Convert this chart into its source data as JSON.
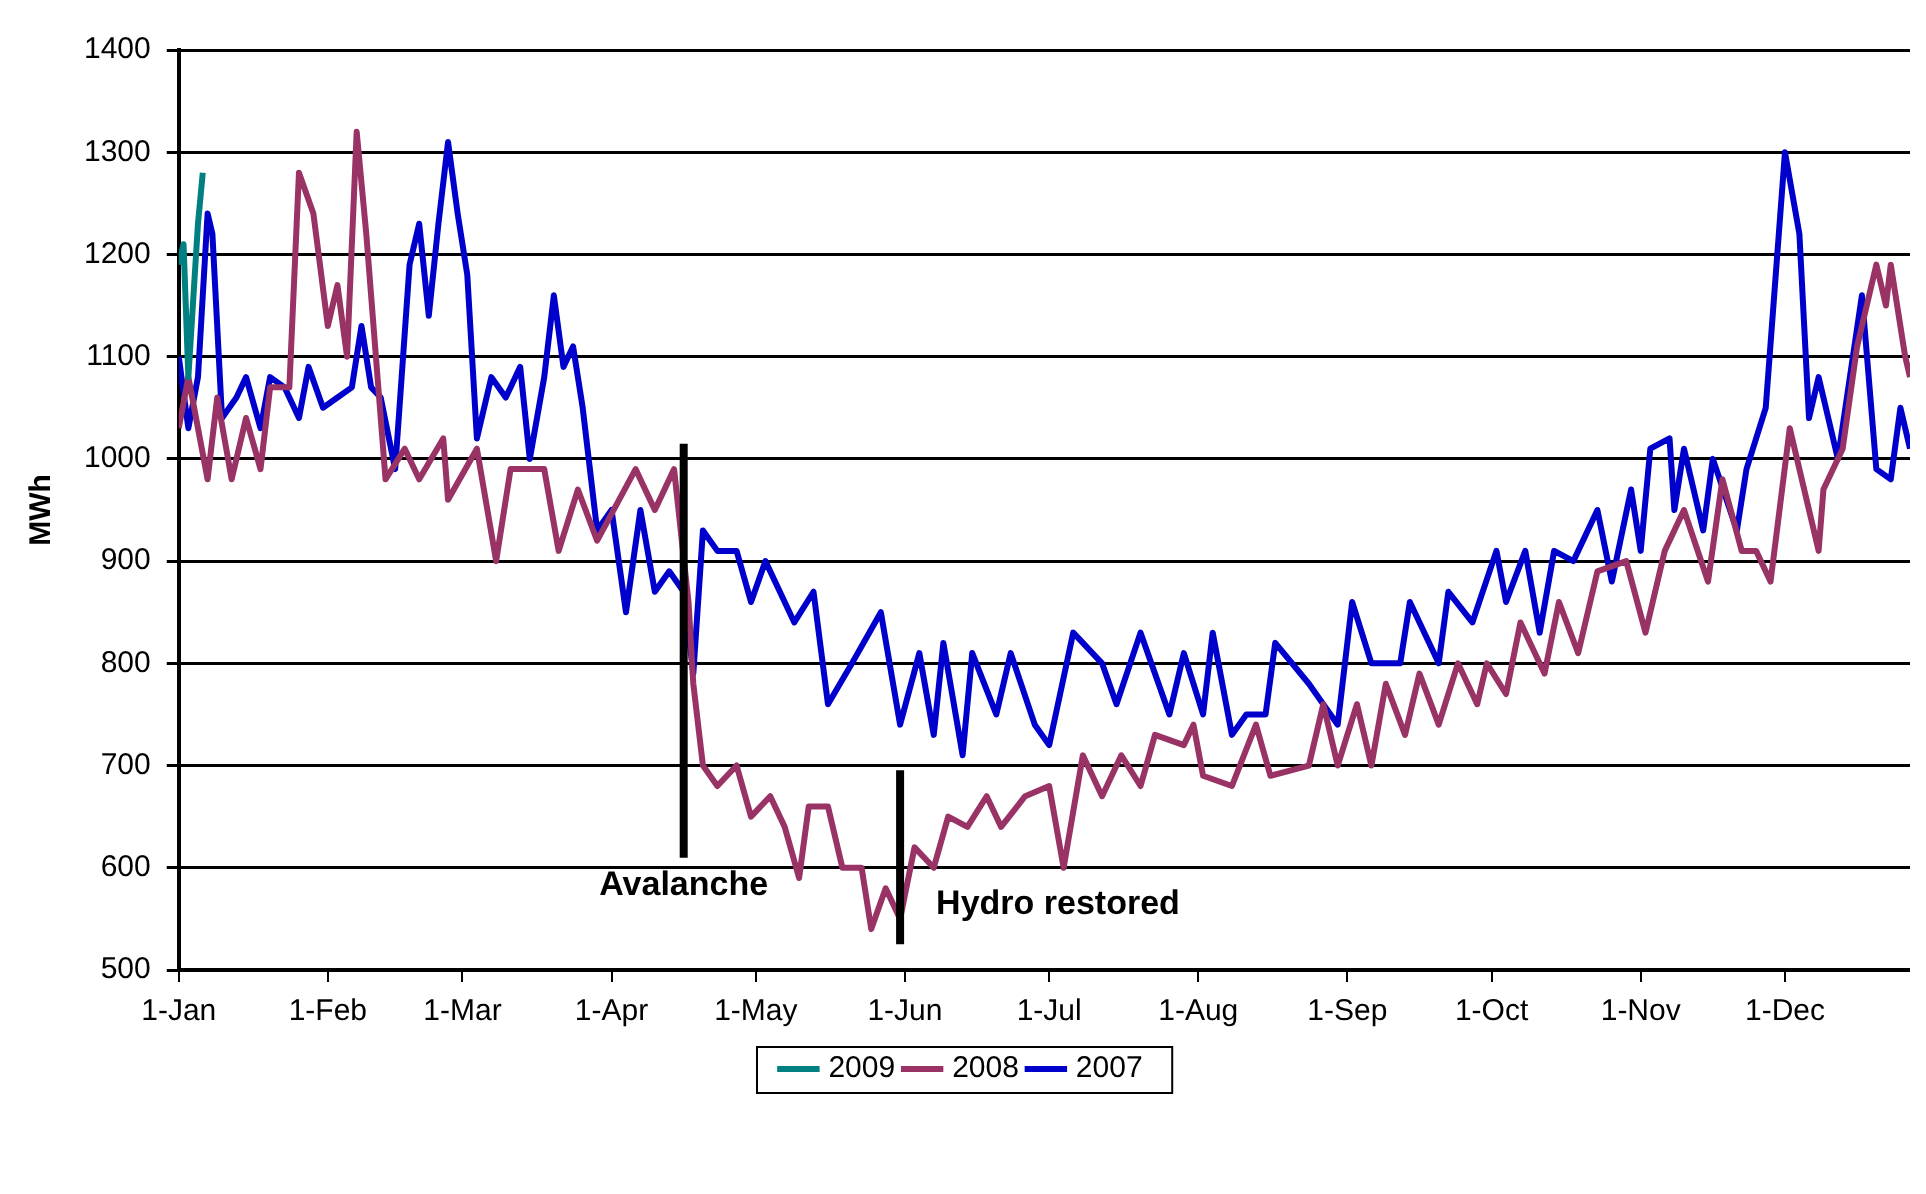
{
  "chart_data": {
    "type": "line",
    "ylabel": "MWh",
    "xlim": [
      "--01-01",
      "--12-27"
    ],
    "xticks": [
      {
        "value": "--01-01",
        "label": "1-Jan"
      },
      {
        "value": "--02-01",
        "label": "1-Feb"
      },
      {
        "value": "--03-01",
        "label": "1-Mar"
      },
      {
        "value": "--04-01",
        "label": "1-Apr"
      },
      {
        "value": "--05-01",
        "label": "1-May"
      },
      {
        "value": "--06-01",
        "label": "1-Jun"
      },
      {
        "value": "--07-01",
        "label": "1-Jul"
      },
      {
        "value": "--08-01",
        "label": "1-Aug"
      },
      {
        "value": "--09-01",
        "label": "1-Sep"
      },
      {
        "value": "--10-01",
        "label": "1-Oct"
      },
      {
        "value": "--11-01",
        "label": "1-Nov"
      },
      {
        "value": "--12-01",
        "label": "1-Dec"
      }
    ],
    "ylim": [
      500,
      1400
    ],
    "yticks": [
      500,
      600,
      700,
      800,
      900,
      1000,
      1100,
      1200,
      1300,
      1400
    ],
    "grid": "y",
    "legend": "bottom",
    "marker": "none",
    "line_style": "solid",
    "ref_lines": [
      {
        "axis": "x",
        "value": "--04-16",
        "label": "Avalanche",
        "color": "#000000"
      },
      {
        "axis": "x",
        "value": "--05-31",
        "label": "Hydro restored",
        "color": "#000000"
      }
    ],
    "series": [
      {
        "name": "2009",
        "color": "#008080",
        "x": [
          "--01-01",
          "--01-02",
          "--01-03",
          "--01-05",
          "--01-06"
        ],
        "values": [
          1190,
          1210,
          1080,
          1230,
          1280
        ]
      },
      {
        "name": "2008",
        "color": "#993366",
        "x": [
          "--01-01",
          "--01-03",
          "--01-07",
          "--01-09",
          "--01-12",
          "--01-15",
          "--01-18",
          "--01-20",
          "--01-24",
          "--01-26",
          "--01-29",
          "--02-01",
          "--02-03",
          "--02-05",
          "--02-07",
          "--02-09",
          "--02-13",
          "--02-17",
          "--02-20",
          "--02-25",
          "--02-26",
          "--03-04",
          "--03-08",
          "--03-11",
          "--03-18",
          "--03-21",
          "--03-25",
          "--03-29",
          "--04-06",
          "--04-10",
          "--04-14",
          "--04-17",
          "--04-18",
          "--04-20",
          "--04-23",
          "--04-27",
          "--04-30",
          "--05-04",
          "--05-07",
          "--05-10",
          "--05-12",
          "--05-16",
          "--05-19",
          "--05-23",
          "--05-25",
          "--05-28",
          "--05-31",
          "--06-03",
          "--06-07",
          "--06-10",
          "--06-14",
          "--06-18",
          "--06-21",
          "--06-26",
          "--07-01",
          "--07-04",
          "--07-08",
          "--07-12",
          "--07-16",
          "--07-20",
          "--07-23",
          "--07-29",
          "--07-31",
          "--08-02",
          "--08-08",
          "--08-13",
          "--08-16",
          "--08-24",
          "--08-27",
          "--08-30",
          "--09-03",
          "--09-06",
          "--09-09",
          "--09-13",
          "--09-16",
          "--09-20",
          "--09-24",
          "--09-28",
          "--09-30",
          "--10-04",
          "--10-07",
          "--10-12",
          "--10-15",
          "--10-19",
          "--10-23",
          "--10-29",
          "--11-02",
          "--11-06",
          "--11-10",
          "--11-15",
          "--11-18",
          "--11-22",
          "--11-25",
          "--11-28",
          "--12-02",
          "--12-08",
          "--12-09",
          "--12-13",
          "--12-16",
          "--12-20",
          "--12-22",
          "--12-23",
          "--12-26",
          "--12-27"
        ],
        "values": [
          1030,
          1080,
          980,
          1060,
          980,
          1040,
          990,
          1070,
          1070,
          1280,
          1240,
          1130,
          1170,
          1100,
          1320,
          1220,
          980,
          1010,
          980,
          1020,
          960,
          1010,
          900,
          990,
          990,
          910,
          970,
          920,
          990,
          950,
          990,
          860,
          780,
          700,
          680,
          700,
          650,
          670,
          640,
          590,
          660,
          660,
          600,
          600,
          540,
          580,
          550,
          620,
          600,
          650,
          640,
          670,
          640,
          670,
          680,
          600,
          710,
          670,
          710,
          680,
          730,
          720,
          740,
          690,
          680,
          740,
          690,
          700,
          760,
          700,
          760,
          700,
          780,
          730,
          790,
          740,
          800,
          760,
          800,
          770,
          840,
          790,
          860,
          810,
          890,
          900,
          830,
          910,
          950,
          880,
          980,
          910,
          910,
          880,
          1030,
          910,
          970,
          1010,
          1110,
          1190,
          1150,
          1190,
          1100,
          1080
        ]
      },
      {
        "name": "2007",
        "color": "#0000cc",
        "x": [
          "--01-01",
          "--01-03",
          "--01-05",
          "--01-07",
          "--01-08",
          "--01-10",
          "--01-13",
          "--01-15",
          "--01-18",
          "--01-20",
          "--01-23",
          "--01-26",
          "--01-28",
          "--01-31",
          "--02-03",
          "--02-06",
          "--02-08",
          "--02-10",
          "--02-12",
          "--02-15",
          "--02-18",
          "--02-20",
          "--02-22",
          "--02-24",
          "--02-26",
          "--02-28",
          "--03-02",
          "--03-04",
          "--03-07",
          "--03-10",
          "--03-13",
          "--03-15",
          "--03-18",
          "--03-20",
          "--03-22",
          "--03-24",
          "--03-26",
          "--03-29",
          "--04-01",
          "--04-04",
          "--04-07",
          "--04-10",
          "--04-13",
          "--04-16",
          "--04-18",
          "--04-20",
          "--04-23",
          "--04-27",
          "--04-30",
          "--05-03",
          "--05-06",
          "--05-09",
          "--05-13",
          "--05-16",
          "--05-21",
          "--05-27",
          "--05-31",
          "--06-04",
          "--06-07",
          "--06-09",
          "--06-13",
          "--06-15",
          "--06-20",
          "--06-23",
          "--06-28",
          "--07-01",
          "--07-06",
          "--07-12",
          "--07-15",
          "--07-20",
          "--07-26",
          "--07-29",
          "--08-02",
          "--08-04",
          "--08-08",
          "--08-11",
          "--08-15",
          "--08-17",
          "--08-24",
          "--08-30",
          "--09-02",
          "--09-06",
          "--09-12",
          "--09-14",
          "--09-20",
          "--09-22",
          "--09-27",
          "--10-02",
          "--10-04",
          "--10-08",
          "--10-11",
          "--10-14",
          "--10-18",
          "--10-23",
          "--10-26",
          "--10-30",
          "--11-01",
          "--11-03",
          "--11-07",
          "--11-08",
          "--11-10",
          "--11-14",
          "--11-16",
          "--11-21",
          "--11-23",
          "--11-27",
          "--12-01",
          "--12-04",
          "--12-06",
          "--12-08",
          "--12-12",
          "--12-17",
          "--12-20",
          "--12-23",
          "--12-25",
          "--12-27"
        ],
        "values": [
          1100,
          1030,
          1080,
          1240,
          1220,
          1040,
          1060,
          1080,
          1030,
          1080,
          1070,
          1040,
          1090,
          1050,
          1060,
          1070,
          1130,
          1070,
          1060,
          990,
          1190,
          1230,
          1140,
          1230,
          1310,
          1240,
          1180,
          1020,
          1080,
          1060,
          1090,
          1000,
          1080,
          1160,
          1090,
          1110,
          1050,
          930,
          950,
          850,
          950,
          870,
          890,
          870,
          790,
          930,
          910,
          910,
          860,
          900,
          870,
          840,
          870,
          760,
          800,
          850,
          740,
          810,
          730,
          820,
          710,
          810,
          750,
          810,
          740,
          720,
          830,
          800,
          760,
          830,
          750,
          810,
          750,
          830,
          730,
          750,
          750,
          820,
          780,
          740,
          860,
          800,
          800,
          860,
          800,
          870,
          840,
          910,
          860,
          910,
          830,
          910,
          900,
          950,
          880,
          970,
          910,
          1010,
          1020,
          950,
          1010,
          930,
          1000,
          930,
          990,
          1050,
          1300,
          1220,
          1040,
          1080,
          1000,
          1160,
          990,
          980,
          1050,
          1010
        ]
      }
    ]
  }
}
